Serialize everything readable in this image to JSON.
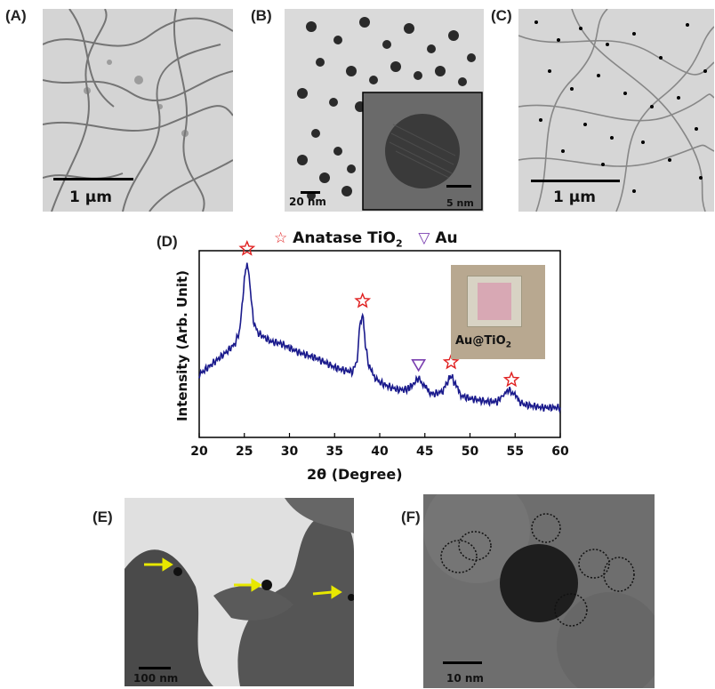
{
  "panels": {
    "a": {
      "label": "(A)",
      "scale": "1 µm"
    },
    "b": {
      "label": "(B)",
      "scale": "20 nm",
      "inset_scale": "5 nm"
    },
    "c": {
      "label": "(C)",
      "scale": "1 µm"
    },
    "d": {
      "label": "(D)"
    },
    "e": {
      "label": "(E)",
      "scale": "100 nm"
    },
    "f": {
      "label": "(F)",
      "scale": "10 nm"
    }
  },
  "legend": {
    "anatase_symbol": "☆",
    "anatase_text": "Anatase TiO",
    "anatase_sub": "2",
    "au_symbol": "▽",
    "au_text": "Au"
  },
  "inset_photo": {
    "label_main": "Au@TiO",
    "label_sub": "2"
  },
  "colors": {
    "xrd_line": "#1a1a8c",
    "anatase_marker": "#e02020",
    "au_marker": "#7a3fb0",
    "arrow": "#e8e800"
  },
  "chart_data": {
    "type": "line",
    "xlabel": "2θ (Degree)",
    "ylabel": "Intensity (Arb. Unit)",
    "xlim": [
      20,
      60
    ],
    "xticks": [
      20,
      25,
      30,
      35,
      40,
      45,
      50,
      55,
      60
    ],
    "y_ticks_shown": false,
    "series": [
      {
        "name": "Au@TiO2",
        "x": [
          20,
          21,
          22,
          23,
          24,
          24.5,
          25,
          25.3,
          25.6,
          26,
          26.5,
          27,
          28,
          29,
          30,
          31,
          32,
          33,
          34,
          35,
          36,
          37,
          37.5,
          37.8,
          38.1,
          38.4,
          38.8,
          39.5,
          40,
          41,
          42,
          43,
          43.8,
          44.3,
          44.8,
          45.5,
          46,
          47,
          47.6,
          47.9,
          48.3,
          49,
          50,
          51,
          52,
          53,
          53.8,
          54.3,
          54.8,
          55.5,
          56,
          57,
          58,
          59,
          60
        ],
        "y": [
          42,
          47,
          52,
          57,
          63,
          72,
          105,
          118,
          103,
          78,
          70,
          68,
          64,
          63,
          60,
          57,
          55,
          53,
          50,
          47,
          45,
          44,
          52,
          75,
          83,
          63,
          47,
          40,
          37,
          34,
          32,
          32,
          36,
          40,
          35,
          30,
          29,
          31,
          38,
          42,
          36,
          28,
          26,
          25,
          24,
          24,
          29,
          32,
          29,
          24,
          22,
          21,
          20,
          20,
          20
        ]
      }
    ],
    "peak_markers": [
      {
        "phase": "Anatase TiO2",
        "x": 25.3
      },
      {
        "phase": "Anatase TiO2",
        "x": 38.1
      },
      {
        "phase": "Au",
        "x": 44.3
      },
      {
        "phase": "Anatase TiO2",
        "x": 47.9
      },
      {
        "phase": "Anatase TiO2",
        "x": 54.6
      }
    ]
  }
}
